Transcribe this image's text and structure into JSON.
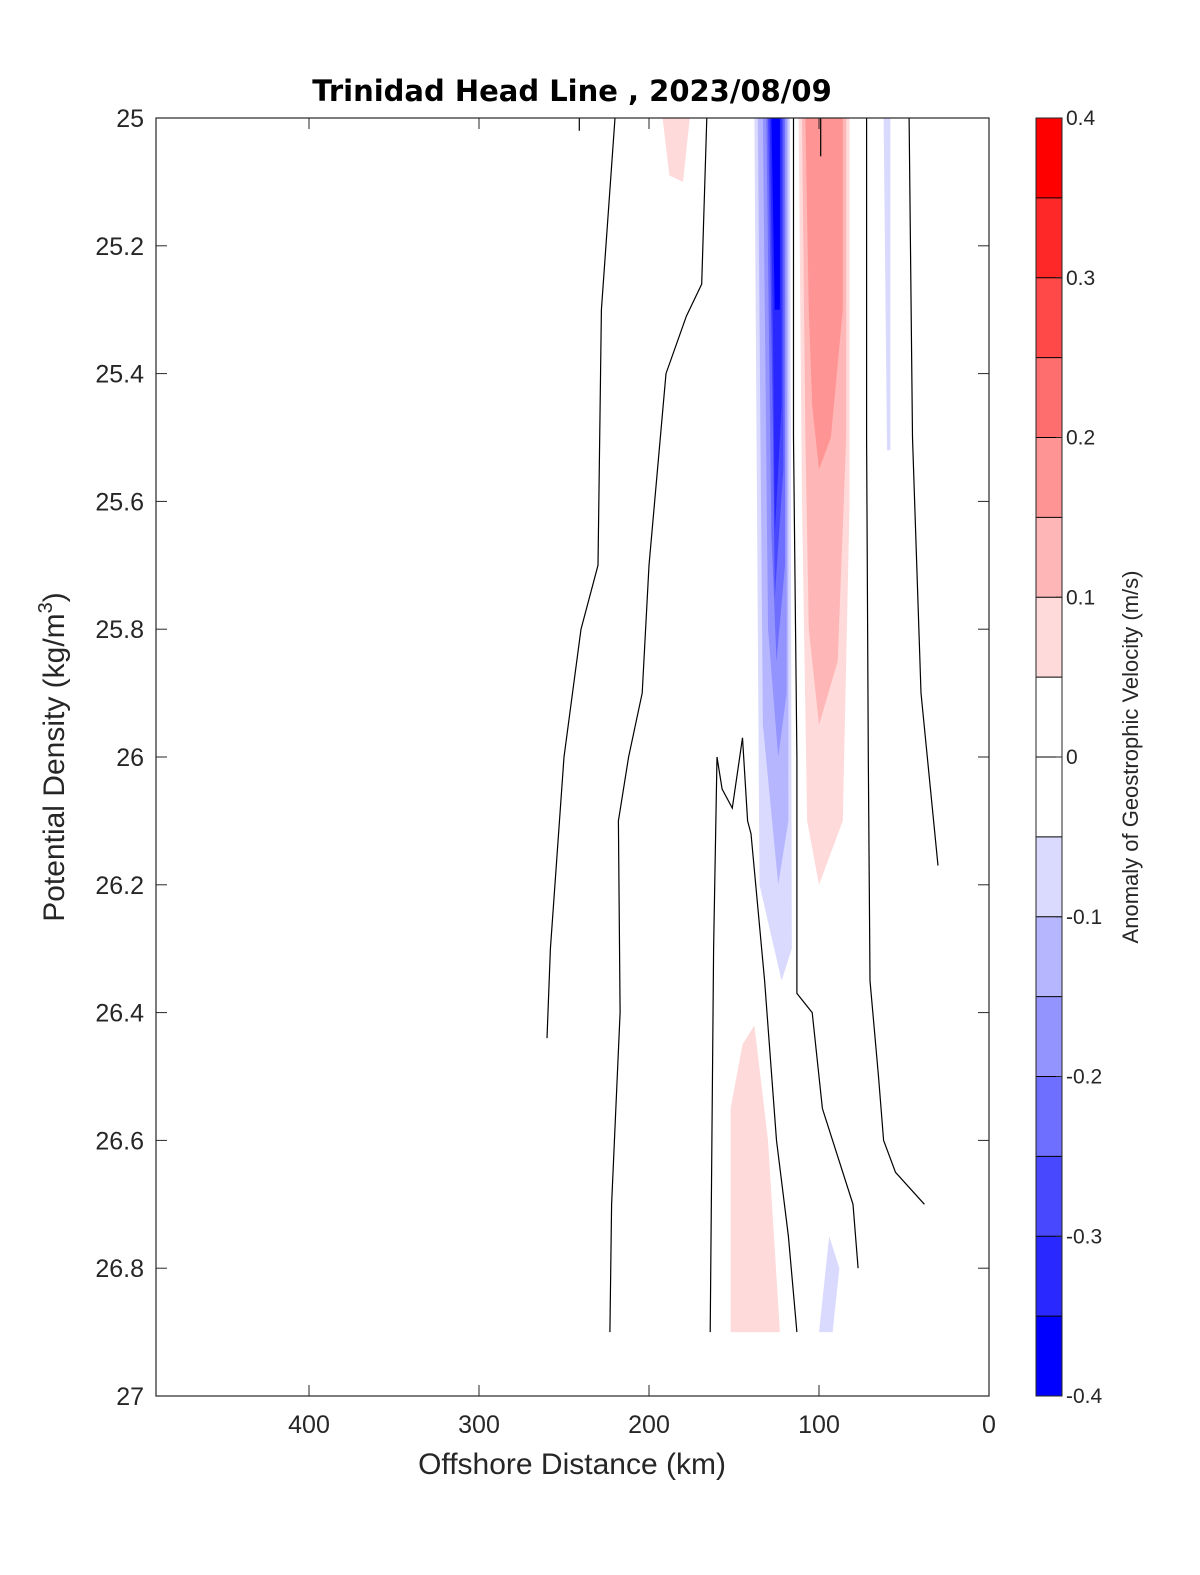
{
  "chart_data": {
    "type": "contour",
    "title": "Trinidad Head Line , 2023/08/09",
    "xlabel": "Offshore Distance (km)",
    "ylabel_main": "Potential Density (kg/m",
    "ylabel_sup": "3",
    "ylabel_close": ")",
    "colorbar_label": "Anomaly of Geostrophic Velocity (m/s)",
    "xlim": [
      490,
      0
    ],
    "ylim": [
      25,
      27
    ],
    "y_reversed": true,
    "x_ticks": [
      400,
      300,
      200,
      100,
      0
    ],
    "x_tick_labels": [
      "400",
      "300",
      "200",
      "100",
      "0"
    ],
    "y_ticks": [
      25,
      25.2,
      25.4,
      25.6,
      25.8,
      26,
      26.2,
      26.4,
      26.6,
      26.8,
      27
    ],
    "y_tick_labels": [
      "25",
      "25.2",
      "25.4",
      "25.6",
      "25.8",
      "26",
      "26.2",
      "26.4",
      "26.6",
      "26.8",
      "27"
    ],
    "colorbar": {
      "range": [
        -0.4,
        0.4
      ],
      "tick_values": [
        0.4,
        0.3,
        0.2,
        0.1,
        0,
        -0.1,
        -0.2,
        -0.3,
        -0.4
      ],
      "tick_labels": [
        "0.4",
        "0.3",
        "0.2",
        "0.1",
        "0",
        "-0.1",
        "-0.2",
        "-0.3",
        "-0.4"
      ],
      "bands": [
        {
          "from": 0.35,
          "to": 0.4,
          "color": "#ff0000"
        },
        {
          "from": 0.3,
          "to": 0.35,
          "color": "#ff2828"
        },
        {
          "from": 0.25,
          "to": 0.3,
          "color": "#ff4848"
        },
        {
          "from": 0.2,
          "to": 0.25,
          "color": "#ff6e6e"
        },
        {
          "from": 0.15,
          "to": 0.2,
          "color": "#ff9494"
        },
        {
          "from": 0.1,
          "to": 0.15,
          "color": "#ffb6b6"
        },
        {
          "from": 0.05,
          "to": 0.1,
          "color": "#ffdada"
        },
        {
          "from": 0,
          "to": 0.05,
          "color": "#ffffff"
        },
        {
          "from": -0.05,
          "to": 0,
          "color": "#ffffff"
        },
        {
          "from": -0.1,
          "to": -0.05,
          "color": "#dadaff"
        },
        {
          "from": -0.15,
          "to": -0.1,
          "color": "#b6b6ff"
        },
        {
          "from": -0.2,
          "to": -0.15,
          "color": "#9494ff"
        },
        {
          "from": -0.25,
          "to": -0.2,
          "color": "#6e6eff"
        },
        {
          "from": -0.3,
          "to": -0.25,
          "color": "#4848ff"
        },
        {
          "from": -0.35,
          "to": -0.3,
          "color": "#2828ff"
        },
        {
          "from": -0.4,
          "to": -0.35,
          "color": "#0000ff"
        }
      ]
    },
    "filled_regions": [
      {
        "level": -0.05,
        "color": "#dadaff",
        "points": [
          [
            154,
            25
          ],
          [
            138,
            25
          ],
          [
            135,
            26.2
          ],
          [
            122,
            26.35
          ],
          [
            116,
            26.3
          ],
          [
            117,
            25
          ]
        ]
      },
      {
        "level": -0.1,
        "color": "#b6b6ff",
        "points": [
          [
            150,
            25
          ],
          [
            136,
            25
          ],
          [
            133,
            25.95
          ],
          [
            124,
            26.2
          ],
          [
            118,
            26.1
          ],
          [
            118,
            25
          ]
        ]
      },
      {
        "level": -0.15,
        "color": "#9494ff",
        "points": [
          [
            146,
            25
          ],
          [
            133,
            25
          ],
          [
            130,
            25.8
          ],
          [
            124,
            26
          ],
          [
            119,
            25.9
          ],
          [
            119,
            25
          ]
        ]
      },
      {
        "level": -0.2,
        "color": "#6e6eff",
        "points": [
          [
            143,
            25
          ],
          [
            131,
            25
          ],
          [
            128,
            25.65
          ],
          [
            125,
            25.85
          ],
          [
            120,
            25.7
          ],
          [
            120,
            25
          ]
        ]
      },
      {
        "level": -0.25,
        "color": "#4848ff",
        "points": [
          [
            141,
            25
          ],
          [
            130,
            25
          ],
          [
            127,
            25.5
          ],
          [
            126,
            25.75
          ],
          [
            121,
            25.55
          ],
          [
            121,
            25
          ]
        ]
      },
      {
        "level": -0.3,
        "color": "#2828ff",
        "points": [
          [
            139,
            25
          ],
          [
            129,
            25
          ],
          [
            127,
            25.35
          ],
          [
            126,
            25.65
          ],
          [
            122,
            25.45
          ],
          [
            122,
            25
          ]
        ]
      },
      {
        "level": -0.35,
        "color": "#0000ff",
        "points": [
          [
            137,
            25
          ],
          [
            128,
            25
          ],
          [
            126,
            25.3
          ],
          [
            123,
            25.3
          ],
          [
            123,
            25
          ]
        ]
      },
      {
        "level": 0.05,
        "color": "#ffdada",
        "points": [
          [
            112,
            25
          ],
          [
            82,
            25
          ],
          [
            82,
            25.6
          ],
          [
            86,
            26.1
          ],
          [
            100,
            26.2
          ],
          [
            107,
            26.1
          ],
          [
            110,
            25.6
          ]
        ]
      },
      {
        "level": 0.1,
        "color": "#ffb6b6",
        "points": [
          [
            110,
            25
          ],
          [
            84,
            25
          ],
          [
            84,
            25.5
          ],
          [
            89,
            25.85
          ],
          [
            100,
            25.95
          ],
          [
            106,
            25.8
          ],
          [
            108,
            25.5
          ]
        ]
      },
      {
        "level": 0.15,
        "color": "#ff9494",
        "points": [
          [
            108,
            25
          ],
          [
            86,
            25
          ],
          [
            86,
            25.3
          ],
          [
            93,
            25.5
          ],
          [
            100,
            25.55
          ],
          [
            104,
            25.45
          ],
          [
            106,
            25.3
          ]
        ]
      },
      {
        "level": 0.05,
        "color": "#ffdada",
        "points": [
          [
            192,
            25
          ],
          [
            176,
            25
          ],
          [
            180,
            25.1
          ],
          [
            188,
            25.09
          ]
        ]
      },
      {
        "level": 0.05,
        "color": "#ffdada",
        "points": [
          [
            152,
            26.9
          ],
          [
            152,
            26.55
          ],
          [
            145,
            26.45
          ],
          [
            138,
            26.42
          ],
          [
            130,
            26.6
          ],
          [
            123,
            26.9
          ]
        ]
      },
      {
        "level": -0.05,
        "color": "#dadaff",
        "points": [
          [
            100,
            26.9
          ],
          [
            94,
            26.75
          ],
          [
            88,
            26.8
          ],
          [
            92,
            26.9
          ]
        ]
      },
      {
        "level": -0.05,
        "color": "#dadaff",
        "points": [
          [
            62,
            25
          ],
          [
            58,
            25
          ],
          [
            58,
            25.52
          ],
          [
            60,
            25.52
          ]
        ]
      }
    ],
    "zero_contours": [
      [
        [
          220,
          25
        ],
        [
          228,
          25.3
        ],
        [
          230,
          25.7
        ],
        [
          240,
          25.8
        ],
        [
          250,
          26
        ],
        [
          258,
          26.3
        ],
        [
          260,
          26.44
        ]
      ],
      [
        [
          166,
          25
        ],
        [
          169,
          25.26
        ],
        [
          178,
          25.31
        ],
        [
          190,
          25.4
        ],
        [
          200,
          25.7
        ],
        [
          204,
          25.9
        ],
        [
          212,
          26
        ],
        [
          218,
          26.1
        ],
        [
          217,
          26.4
        ],
        [
          222,
          26.7
        ],
        [
          223,
          26.9
        ]
      ],
      [
        [
          164,
          26.9
        ],
        [
          162,
          26.3
        ],
        [
          160,
          26
        ],
        [
          157,
          26.05
        ],
        [
          151,
          26.08
        ],
        [
          145,
          25.97
        ]
      ],
      [
        [
          145,
          25.97
        ],
        [
          142,
          26.1
        ],
        [
          140,
          26.12
        ],
        [
          132,
          26.35
        ],
        [
          125,
          26.6
        ],
        [
          118,
          26.75
        ],
        [
          113,
          26.9
        ]
      ],
      [
        [
          115,
          25
        ],
        [
          115,
          25.5
        ],
        [
          113,
          26
        ],
        [
          113,
          26.37
        ],
        [
          104,
          26.4
        ],
        [
          98,
          26.55
        ],
        [
          80,
          26.7
        ],
        [
          77,
          26.8
        ]
      ],
      [
        [
          72,
          25
        ],
        [
          72,
          25.5
        ],
        [
          71,
          26
        ],
        [
          70,
          26.35
        ],
        [
          65,
          26.5
        ],
        [
          62,
          26.6
        ],
        [
          55,
          26.65
        ],
        [
          38,
          26.7
        ]
      ],
      [
        [
          47,
          25
        ],
        [
          45,
          25.5
        ],
        [
          40,
          25.9
        ],
        [
          30,
          26.17
        ]
      ],
      [
        [
          99,
          25
        ],
        [
          99,
          25.06
        ]
      ],
      [
        [
          241,
          25
        ],
        [
          241,
          25.02
        ]
      ]
    ]
  }
}
